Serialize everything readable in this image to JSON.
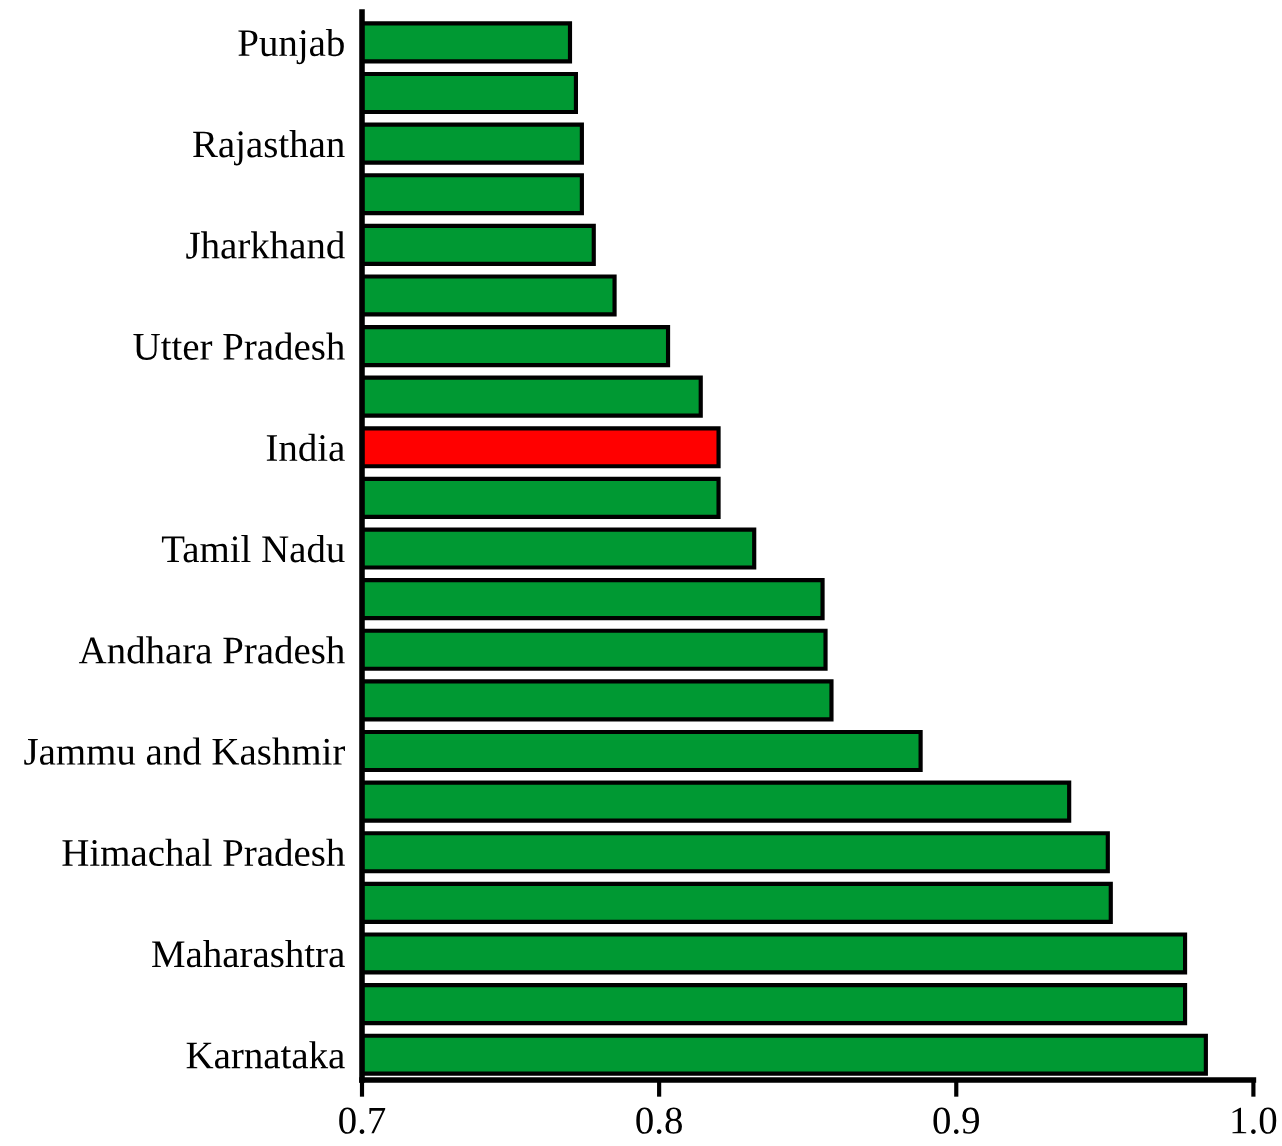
{
  "chart_data": {
    "type": "bar",
    "orientation": "horizontal",
    "categories": [
      "Punjab",
      null,
      "Rajasthan",
      null,
      "Jharkhand",
      null,
      "Utter Pradesh",
      null,
      "India",
      null,
      "Tamil Nadu",
      null,
      "Andhara Pradesh",
      null,
      "Jammu and Kashmir",
      null,
      "Himachal Pradesh",
      null,
      "Maharashtra",
      null,
      "Karnataka"
    ],
    "values": [
      0.77,
      0.772,
      0.774,
      0.774,
      0.778,
      0.785,
      0.803,
      0.814,
      0.82,
      0.82,
      0.832,
      0.855,
      0.856,
      0.858,
      0.888,
      0.938,
      0.951,
      0.952,
      0.977,
      0.977,
      0.984
    ],
    "colors": [
      "#009933",
      "#009933",
      "#009933",
      "#009933",
      "#009933",
      "#009933",
      "#009933",
      "#009933",
      "#ff0000",
      "#009933",
      "#009933",
      "#009933",
      "#009933",
      "#009933",
      "#009933",
      "#009933",
      "#009933",
      "#009933",
      "#009933",
      "#009933",
      "#009933"
    ],
    "xlim": [
      0.7,
      1.0
    ],
    "xticks": [
      0.7,
      0.8,
      0.9,
      {
        "value": 1.0,
        "label": "1.0"
      }
    ],
    "grid": false,
    "legend": false
  }
}
